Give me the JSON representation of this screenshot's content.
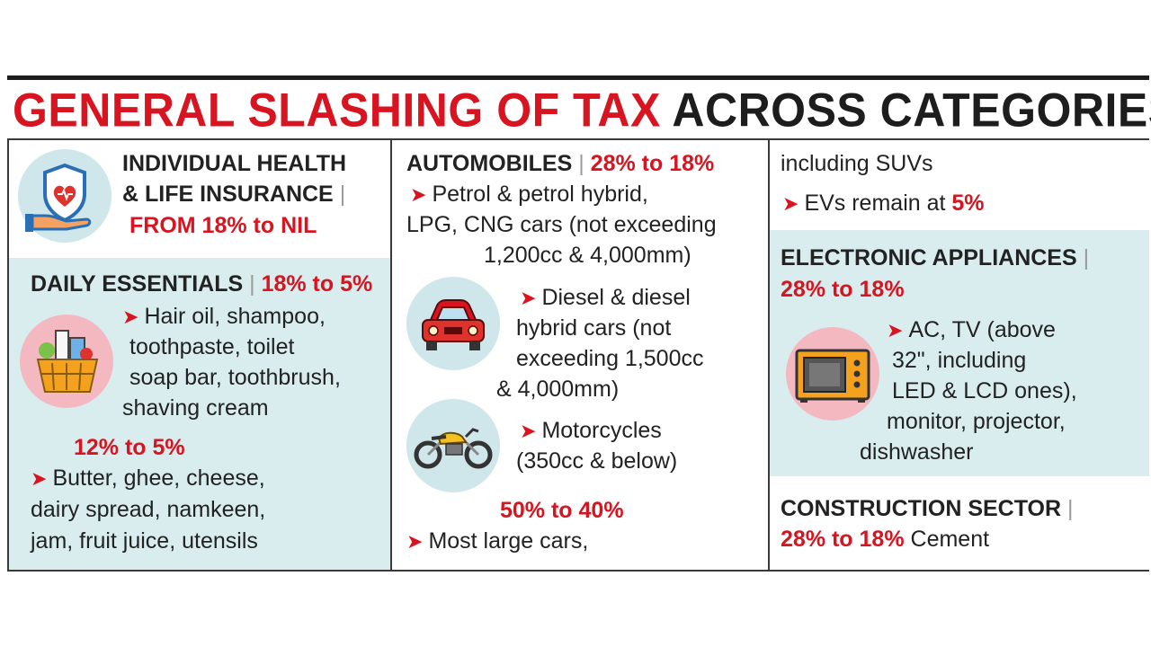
{
  "headline": {
    "red_part": "GENERAL SLASHING OF TAX",
    "black_part": "ACROSS CATEGORIES"
  },
  "colors": {
    "accent_red": "#d7141f",
    "panel_blue": "#d9edef",
    "text_dark": "#222222"
  },
  "insurance": {
    "line1": "INDIVIDUAL HEALTH",
    "line2": "& LIFE INSURANCE",
    "rate": "FROM 18% to NIL",
    "icon": "hand-heart-shield-icon"
  },
  "daily": {
    "title": "DAILY ESSENTIALS",
    "rate": "18% to 5%",
    "items1": [
      "Hair oil, shampoo,",
      "toothpaste, toilet",
      "soap bar, toothbrush,",
      "shaving cream"
    ],
    "rate2": "12% to 5%",
    "items2": [
      "Butter, ghee, cheese,",
      "dairy spread, namkeen,",
      "jam, fruit juice, utensils"
    ],
    "icon": "grocery-basket-icon"
  },
  "auto": {
    "title": "AUTOMOBILES",
    "rate": "28% to 18%",
    "petrol": [
      "Petrol & petrol hybrid,",
      "LPG, CNG cars (not exceeding",
      "1,200cc & 4,000mm)"
    ],
    "diesel": [
      "Diesel & diesel",
      "hybrid cars (not",
      "exceeding 1,500cc",
      "& 4,000mm)"
    ],
    "moto": [
      "Motorcycles",
      "(350cc & below)"
    ],
    "rate2": "50% to 40%",
    "large": "Most large cars,",
    "large_cont": "including SUVs",
    "ev_text": "EVs remain at",
    "ev_rate": "5%",
    "icons": [
      "car-icon",
      "motorcycle-icon"
    ]
  },
  "electronics": {
    "title": "ELECTRONIC APPLIANCES",
    "rate": "28% to 18%",
    "items": [
      "AC, TV (above",
      "32\", including",
      "LED & LCD ones),",
      "monitor, projector,",
      "dishwasher"
    ],
    "icon": "microwave-icon"
  },
  "construction": {
    "title": "CONSTRUCTION SECTOR",
    "rate": "28% to 18%",
    "item": "Cement"
  },
  "separator": "|",
  "arrow": "➤"
}
